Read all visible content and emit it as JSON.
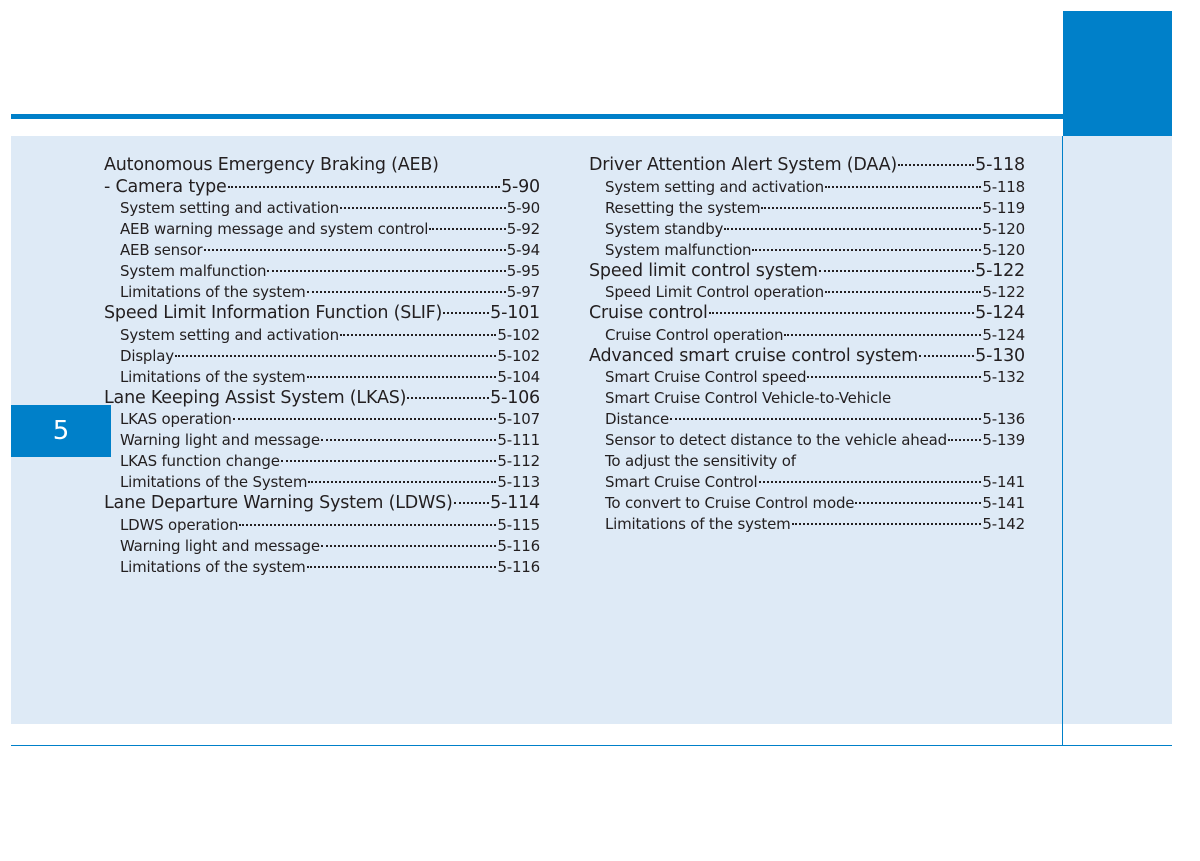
{
  "chapter": {
    "number": "5"
  },
  "toc_left": [
    {
      "level": "main",
      "title": "Autonomous Emergency Braking (AEB)",
      "page": ""
    },
    {
      "level": "main",
      "title": "- Camera type",
      "page": "5-90"
    },
    {
      "level": "sub",
      "title": "System setting and activation",
      "page": "5-90"
    },
    {
      "level": "sub",
      "title": "AEB warning message and system control",
      "page": "5-92"
    },
    {
      "level": "sub",
      "title": "AEB sensor",
      "page": "5-94"
    },
    {
      "level": "sub",
      "title": "System malfunction",
      "page": "5-95"
    },
    {
      "level": "sub",
      "title": "Limitations of the system",
      "page": "5-97"
    },
    {
      "level": "main",
      "title": "Speed Limit Information Function (SLIF)",
      "page": "5-101"
    },
    {
      "level": "sub",
      "title": "System setting and activation",
      "page": "5-102"
    },
    {
      "level": "sub",
      "title": "Display",
      "page": "5-102"
    },
    {
      "level": "sub",
      "title": "Limitations of the system",
      "page": "5-104"
    },
    {
      "level": "main",
      "title": "Lane Keeping Assist System (LKAS)",
      "page": "5-106"
    },
    {
      "level": "sub",
      "title": "LKAS operation",
      "page": "5-107"
    },
    {
      "level": "sub",
      "title": "Warning light and message",
      "page": "5-111"
    },
    {
      "level": "sub",
      "title": "LKAS function change",
      "page": "5-112"
    },
    {
      "level": "sub",
      "title": "Limitations of the System",
      "page": "5-113"
    },
    {
      "level": "main",
      "title": "Lane Departure Warning System (LDWS)",
      "page": "5-114"
    },
    {
      "level": "sub",
      "title": "LDWS operation",
      "page": "5-115"
    },
    {
      "level": "sub",
      "title": "Warning light and message",
      "page": "5-116"
    },
    {
      "level": "sub",
      "title": "Limitations of the system",
      "page": "5-116"
    }
  ],
  "toc_right": [
    {
      "level": "main",
      "title": "Driver Attention Alert System (DAA)",
      "page": "5-118"
    },
    {
      "level": "sub",
      "title": "System setting and activation",
      "page": "5-118"
    },
    {
      "level": "sub",
      "title": "Resetting the system",
      "page": "5-119"
    },
    {
      "level": "sub",
      "title": "System standby",
      "page": "5-120"
    },
    {
      "level": "sub",
      "title": "System malfunction",
      "page": "5-120"
    },
    {
      "level": "main",
      "title": "Speed limit control system",
      "page": "5-122"
    },
    {
      "level": "sub",
      "title": "Speed Limit Control operation",
      "page": "5-122"
    },
    {
      "level": "main",
      "title": "Cruise control",
      "page": "5-124"
    },
    {
      "level": "sub",
      "title": "Cruise Control operation",
      "page": "5-124"
    },
    {
      "level": "main",
      "title": "Advanced smart cruise control system",
      "page": "5-130"
    },
    {
      "level": "sub",
      "title": "Smart Cruise Control speed",
      "page": "5-132"
    },
    {
      "level": "sub",
      "title": "Smart Cruise Control Vehicle-to-Vehicle",
      "page": ""
    },
    {
      "level": "sub",
      "title": "Distance",
      "page": "5-136"
    },
    {
      "level": "sub",
      "title": "Sensor to detect distance to the vehicle ahead",
      "page": "5-139"
    },
    {
      "level": "sub",
      "title": "To adjust the sensitivity of",
      "page": ""
    },
    {
      "level": "sub",
      "title": "Smart Cruise Control",
      "page": "5-141"
    },
    {
      "level": "sub",
      "title": "To convert to Cruise Control mode",
      "page": "5-141"
    },
    {
      "level": "sub",
      "title": "Limitations of the system",
      "page": "5-142"
    }
  ],
  "colors": {
    "accent": "#0080c9",
    "panel": "#deeaf6",
    "text": "#231f20"
  }
}
